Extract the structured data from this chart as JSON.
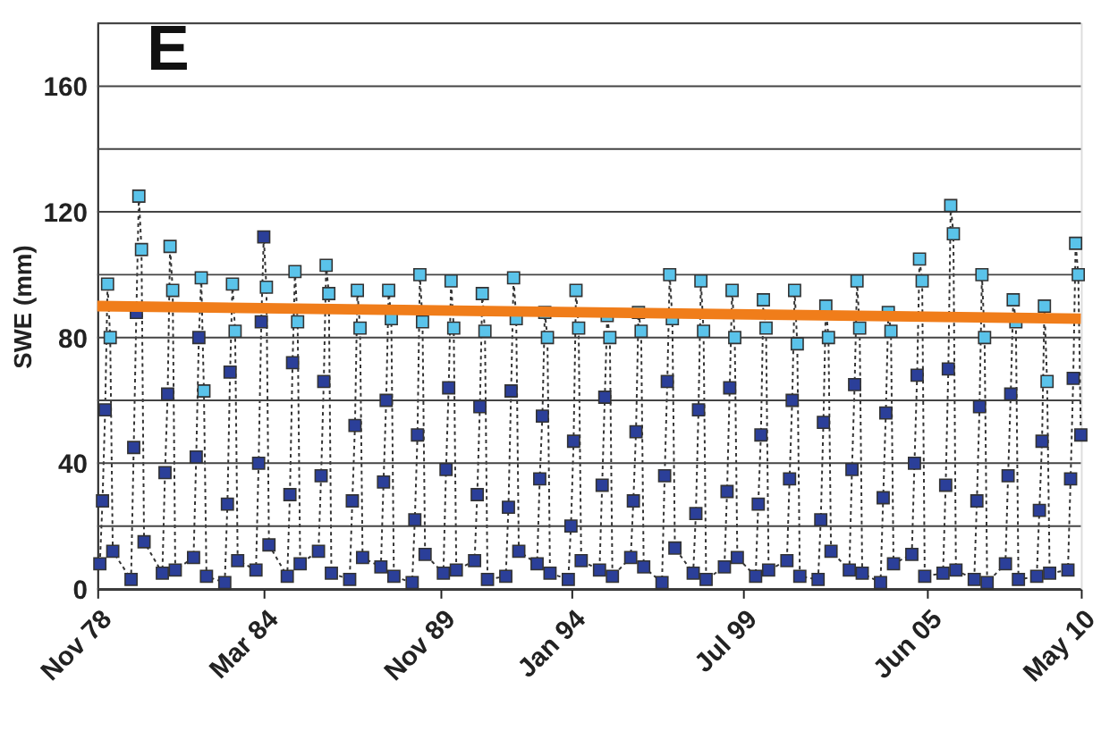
{
  "chart_data": {
    "type": "line",
    "ylabel": "SWE (mm)",
    "annotations": [
      "E"
    ],
    "ylim": [
      0,
      180
    ],
    "yticks": [
      0,
      {
        "value": 20,
        "label": null
      },
      40,
      {
        "value": 60,
        "label": null
      },
      80,
      {
        "value": 100,
        "label": null
      },
      120,
      {
        "value": 140,
        "label": null
      },
      160,
      {
        "value": 180,
        "label": null
      }
    ],
    "xlim": [
      "1978-11",
      "2010-05"
    ],
    "xticks": [
      {
        "value": "1978-11",
        "label": "Nov 78"
      },
      {
        "value": "1984-03",
        "label": "Mar 84"
      },
      {
        "value": "1989-11",
        "label": "Nov 89"
      },
      {
        "value": "1994-01",
        "label": "Jan 94"
      },
      {
        "value": "1999-07",
        "label": "Jul 99"
      },
      {
        "value": "2005-06",
        "label": "Jun 05"
      },
      {
        "value": "2010-05",
        "label": "May 10"
      }
    ],
    "grid": "y",
    "series": [
      {
        "color": "#333333",
        "line_style": "dotted",
        "marker": "square",
        "x": [
          "1978-12",
          "1979-01",
          "1979-02",
          "1979-03",
          "1979-04",
          "1979-05",
          "1979-12",
          "1980-01",
          "1980-02",
          "1980-03",
          "1980-04",
          "1980-05",
          "1980-12",
          "1981-01",
          "1981-02",
          "1981-03",
          "1981-04",
          "1981-05",
          "1981-12",
          "1982-01",
          "1982-02",
          "1982-03",
          "1982-04",
          "1982-05",
          "1982-12",
          "1983-01",
          "1983-02",
          "1983-03",
          "1983-04",
          "1983-05",
          "1983-12",
          "1984-01",
          "1984-02",
          "1984-03",
          "1984-04",
          "1984-05",
          "1984-12",
          "1985-01",
          "1985-02",
          "1985-03",
          "1985-04",
          "1985-05",
          "1985-12",
          "1986-01",
          "1986-02",
          "1986-03",
          "1986-04",
          "1986-05",
          "1986-12",
          "1987-01",
          "1987-02",
          "1987-03",
          "1987-04",
          "1987-05",
          "1987-12",
          "1988-01",
          "1988-02",
          "1988-03",
          "1988-04",
          "1988-05",
          "1988-12",
          "1989-01",
          "1989-02",
          "1989-03",
          "1989-04",
          "1989-05",
          "1989-12",
          "1990-01",
          "1990-02",
          "1990-03",
          "1990-04",
          "1990-05",
          "1990-12",
          "1991-01",
          "1991-02",
          "1991-03",
          "1991-04",
          "1991-05",
          "1991-12",
          "1992-01",
          "1992-02",
          "1992-03",
          "1992-04",
          "1992-05",
          "1992-12",
          "1993-01",
          "1993-02",
          "1993-03",
          "1993-04",
          "1993-05",
          "1993-12",
          "1994-01",
          "1994-02",
          "1994-03",
          "1994-04",
          "1994-05",
          "1994-12",
          "1995-01",
          "1995-02",
          "1995-03",
          "1995-04",
          "1995-05",
          "1995-12",
          "1996-01",
          "1996-02",
          "1996-03",
          "1996-04",
          "1996-05",
          "1996-12",
          "1997-01",
          "1997-02",
          "1997-03",
          "1997-04",
          "1997-05",
          "1997-12",
          "1998-01",
          "1998-02",
          "1998-03",
          "1998-04",
          "1998-05",
          "1998-12",
          "1999-01",
          "1999-02",
          "1999-03",
          "1999-04",
          "1999-05",
          "1999-12",
          "2000-01",
          "2000-02",
          "2000-03",
          "2000-04",
          "2000-05",
          "2000-12",
          "2001-01",
          "2001-02",
          "2001-03",
          "2001-04",
          "2001-05",
          "2001-12",
          "2002-01",
          "2002-02",
          "2002-03",
          "2002-04",
          "2002-05",
          "2002-12",
          "2003-01",
          "2003-02",
          "2003-03",
          "2003-04",
          "2003-05",
          "2003-12",
          "2004-01",
          "2004-02",
          "2004-03",
          "2004-04",
          "2004-05",
          "2004-12",
          "2005-01",
          "2005-02",
          "2005-03",
          "2005-04",
          "2005-05",
          "2005-12",
          "2006-01",
          "2006-02",
          "2006-03",
          "2006-04",
          "2006-05",
          "2006-12",
          "2007-01",
          "2007-02",
          "2007-03",
          "2007-04",
          "2007-05",
          "2007-12",
          "2008-01",
          "2008-02",
          "2008-03",
          "2008-04",
          "2008-05",
          "2008-12",
          "2009-01",
          "2009-02",
          "2009-03",
          "2009-04",
          "2009-05",
          "2009-12",
          "2010-01",
          "2010-02",
          "2010-03",
          "2010-04",
          "2010-05"
        ],
        "values": [
          8,
          28,
          57,
          97,
          80,
          12,
          3,
          45,
          88,
          125,
          108,
          15,
          5,
          37,
          62,
          109,
          95,
          6,
          10,
          42,
          80,
          99,
          63,
          4,
          2,
          27,
          69,
          97,
          82,
          9,
          6,
          40,
          85,
          112,
          96,
          14,
          4,
          30,
          72,
          101,
          85,
          8,
          12,
          36,
          66,
          103,
          94,
          5,
          3,
          28,
          52,
          95,
          83,
          10,
          7,
          34,
          60,
          95,
          86,
          4,
          2,
          22,
          49,
          100,
          85,
          11,
          5,
          38,
          64,
          98,
          83,
          6,
          9,
          30,
          58,
          94,
          82,
          3,
          4,
          26,
          63,
          99,
          86,
          12,
          8,
          35,
          55,
          88,
          80,
          5,
          3,
          20,
          47,
          95,
          83,
          9,
          6,
          33,
          61,
          87,
          80,
          4,
          10,
          28,
          50,
          88,
          82,
          7,
          2,
          36,
          66,
          100,
          86,
          13,
          5,
          24,
          57,
          98,
          82,
          3,
          7,
          31,
          64,
          95,
          80,
          10,
          4,
          27,
          49,
          92,
          83,
          6,
          9,
          35,
          60,
          95,
          78,
          4,
          3,
          22,
          53,
          90,
          80,
          12,
          6,
          38,
          65,
          98,
          83,
          5,
          2,
          29,
          56,
          88,
          82,
          8,
          11,
          40,
          68,
          105,
          98,
          4,
          5,
          33,
          70,
          122,
          113,
          6,
          3,
          28,
          58,
          100,
          80,
          2,
          8,
          36,
          62,
          92,
          85,
          3,
          4,
          25,
          47,
          90,
          66,
          5,
          6,
          35,
          67,
          110,
          100,
          49
        ],
        "colors": [
          "#2b3f99",
          "#2b3f99",
          "#2b3f99",
          "#5ac3ea",
          "#5ac3ea",
          "#2b3f99",
          "#2b3f99",
          "#2b3f99",
          "#2b3f99",
          "#5ac3ea",
          "#5ac3ea",
          "#2b3f99",
          "#2b3f99",
          "#2b3f99",
          "#2b3f99",
          "#5ac3ea",
          "#5ac3ea",
          "#2b3f99",
          "#2b3f99",
          "#2b3f99",
          "#2b3f99",
          "#5ac3ea",
          "#5ac3ea",
          "#2b3f99",
          "#2b3f99",
          "#2b3f99",
          "#2b3f99",
          "#5ac3ea",
          "#5ac3ea",
          "#2b3f99",
          "#2b3f99",
          "#2b3f99",
          "#2b3f99",
          "#2b3f99",
          "#5ac3ea",
          "#2b3f99",
          "#2b3f99",
          "#2b3f99",
          "#2b3f99",
          "#5ac3ea",
          "#5ac3ea",
          "#2b3f99",
          "#2b3f99",
          "#2b3f99",
          "#2b3f99",
          "#5ac3ea",
          "#5ac3ea",
          "#2b3f99",
          "#2b3f99",
          "#2b3f99",
          "#2b3f99",
          "#5ac3ea",
          "#5ac3ea",
          "#2b3f99",
          "#2b3f99",
          "#2b3f99",
          "#2b3f99",
          "#5ac3ea",
          "#5ac3ea",
          "#2b3f99",
          "#2b3f99",
          "#2b3f99",
          "#2b3f99",
          "#5ac3ea",
          "#5ac3ea",
          "#2b3f99",
          "#2b3f99",
          "#2b3f99",
          "#2b3f99",
          "#5ac3ea",
          "#5ac3ea",
          "#2b3f99",
          "#2b3f99",
          "#2b3f99",
          "#2b3f99",
          "#5ac3ea",
          "#5ac3ea",
          "#2b3f99",
          "#2b3f99",
          "#2b3f99",
          "#2b3f99",
          "#5ac3ea",
          "#5ac3ea",
          "#2b3f99",
          "#2b3f99",
          "#2b3f99",
          "#2b3f99",
          "#5ac3ea",
          "#5ac3ea",
          "#2b3f99",
          "#2b3f99",
          "#2b3f99",
          "#2b3f99",
          "#5ac3ea",
          "#5ac3ea",
          "#2b3f99",
          "#2b3f99",
          "#2b3f99",
          "#2b3f99",
          "#5ac3ea",
          "#5ac3ea",
          "#2b3f99",
          "#2b3f99",
          "#2b3f99",
          "#2b3f99",
          "#5ac3ea",
          "#5ac3ea",
          "#2b3f99",
          "#2b3f99",
          "#2b3f99",
          "#2b3f99",
          "#5ac3ea",
          "#5ac3ea",
          "#2b3f99",
          "#2b3f99",
          "#2b3f99",
          "#2b3f99",
          "#5ac3ea",
          "#5ac3ea",
          "#2b3f99",
          "#2b3f99",
          "#2b3f99",
          "#2b3f99",
          "#5ac3ea",
          "#5ac3ea",
          "#2b3f99",
          "#2b3f99",
          "#2b3f99",
          "#2b3f99",
          "#5ac3ea",
          "#5ac3ea",
          "#2b3f99",
          "#2b3f99",
          "#2b3f99",
          "#2b3f99",
          "#5ac3ea",
          "#5ac3ea",
          "#2b3f99",
          "#2b3f99",
          "#2b3f99",
          "#2b3f99",
          "#5ac3ea",
          "#5ac3ea",
          "#2b3f99",
          "#2b3f99",
          "#2b3f99",
          "#2b3f99",
          "#5ac3ea",
          "#5ac3ea",
          "#2b3f99",
          "#2b3f99",
          "#2b3f99",
          "#2b3f99",
          "#5ac3ea",
          "#5ac3ea",
          "#2b3f99",
          "#2b3f99",
          "#2b3f99",
          "#2b3f99",
          "#5ac3ea",
          "#5ac3ea",
          "#2b3f99",
          "#2b3f99",
          "#2b3f99",
          "#2b3f99",
          "#5ac3ea",
          "#5ac3ea",
          "#2b3f99",
          "#2b3f99",
          "#2b3f99",
          "#2b3f99",
          "#5ac3ea",
          "#5ac3ea",
          "#2b3f99",
          "#2b3f99",
          "#2b3f99",
          "#2b3f99",
          "#5ac3ea",
          "#5ac3ea",
          "#2b3f99",
          "#2b3f99",
          "#2b3f99",
          "#2b3f99",
          "#5ac3ea",
          "#5ac3ea",
          "#2b3f99",
          "#2b3f99",
          "#2b3f99",
          "#2b3f99",
          "#5ac3ea",
          "#5ac3ea",
          "#2b3f99"
        ]
      },
      {
        "color": "#f07d1a",
        "line_style": "solid",
        "marker": "none",
        "x": [
          "1978-11",
          "2010-05"
        ],
        "values": [
          90,
          86
        ]
      }
    ]
  }
}
